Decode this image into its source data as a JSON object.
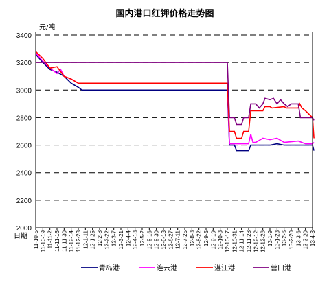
{
  "chart_data": {
    "type": "line",
    "title": "国内港口红钾价格走势图",
    "ylabel": "元/吨",
    "xlabel": "日期",
    "ylim": [
      2000,
      3400
    ],
    "yticks": [
      "3400",
      "3200",
      "3000",
      "2800",
      "2600",
      "2400",
      "2200",
      "2000"
    ],
    "grid": "horizontal-dashed",
    "legend_position": "bottom",
    "x_tick_labels": [
      "11-10-5",
      "11-10-19",
      "11-11-2",
      "11-11-16",
      "11-11-30",
      "11-12-14",
      "11-12-28",
      "12-1-11",
      "12-1-25",
      "12-2-8",
      "12-2-22",
      "12-3-7",
      "12-3-21",
      "12-4-4",
      "12-4-18",
      "12-5-2",
      "12-5-16",
      "12-5-30",
      "12-6-13",
      "12-6-27",
      "12-7-11",
      "12-7-25",
      "12-8-8",
      "12-8-22",
      "12-9-5",
      "12-9-19",
      "12-10-3",
      "12-10-17",
      "12-10-31",
      "12-11-14",
      "12-11-28",
      "12-12-12",
      "12-12-26",
      "13-1-9",
      "13-1-23",
      "13-2-6",
      "13-2-20",
      "13-3-6",
      "13-3-20",
      "13-4-3"
    ],
    "series": [
      {
        "name": "青岛港",
        "color": "#000080",
        "points": [
          [
            0,
            3260
          ],
          [
            1,
            3200
          ],
          [
            2,
            3150
          ],
          [
            3,
            3130
          ],
          [
            4,
            3100
          ],
          [
            5,
            3050
          ],
          [
            6,
            3020
          ],
          [
            6.5,
            3000
          ],
          [
            27,
            3000
          ],
          [
            27.3,
            2600
          ],
          [
            28,
            2600
          ],
          [
            28.3,
            2560
          ],
          [
            30,
            2560
          ],
          [
            30.3,
            2600
          ],
          [
            33,
            2600
          ],
          [
            34,
            2610
          ],
          [
            35,
            2600
          ],
          [
            37,
            2600
          ],
          [
            38,
            2600
          ],
          [
            39,
            2600
          ],
          [
            39.2,
            2560
          ]
        ]
      },
      {
        "name": "连云港",
        "color": "#FF00FF",
        "points": [
          [
            0,
            3270
          ],
          [
            1,
            3210
          ],
          [
            2,
            3160
          ],
          [
            3,
            3120
          ],
          [
            3.5,
            3150
          ],
          [
            4,
            3100
          ],
          [
            5,
            3080
          ],
          [
            6,
            3050
          ],
          [
            27,
            3050
          ],
          [
            27.3,
            2610
          ],
          [
            30,
            2610
          ],
          [
            30.3,
            2680
          ],
          [
            30.6,
            2620
          ],
          [
            31,
            2620
          ],
          [
            32,
            2650
          ],
          [
            33,
            2640
          ],
          [
            34,
            2650
          ],
          [
            35,
            2620
          ],
          [
            37,
            2630
          ],
          [
            38,
            2610
          ],
          [
            39,
            2610
          ],
          [
            39.2,
            2620
          ]
        ]
      },
      {
        "name": "湛江港",
        "color": "#FF0000",
        "points": [
          [
            0,
            3280
          ],
          [
            1,
            3230
          ],
          [
            2,
            3160
          ],
          [
            3,
            3170
          ],
          [
            4,
            3100
          ],
          [
            5,
            3080
          ],
          [
            6,
            3050
          ],
          [
            27,
            3050
          ],
          [
            27.3,
            2700
          ],
          [
            28,
            2700
          ],
          [
            28.3,
            2650
          ],
          [
            29,
            2650
          ],
          [
            29.3,
            2700
          ],
          [
            30,
            2700
          ],
          [
            30.3,
            2850
          ],
          [
            32,
            2850
          ],
          [
            32.3,
            2880
          ],
          [
            33,
            2880
          ],
          [
            33.3,
            2870
          ],
          [
            35,
            2880
          ],
          [
            35.3,
            2870
          ],
          [
            37,
            2870
          ],
          [
            37.2,
            2900
          ],
          [
            37.5,
            2870
          ],
          [
            38,
            2850
          ],
          [
            39,
            2800
          ],
          [
            39.2,
            2650
          ]
        ]
      },
      {
        "name": "营口港",
        "color": "#800080",
        "points": [
          [
            0,
            3200
          ],
          [
            27,
            3200
          ],
          [
            27.3,
            2800
          ],
          [
            28,
            2800
          ],
          [
            28.3,
            2750
          ],
          [
            29,
            2750
          ],
          [
            29.3,
            2800
          ],
          [
            30,
            2800
          ],
          [
            30.3,
            2900
          ],
          [
            31,
            2900
          ],
          [
            31.5,
            2870
          ],
          [
            32,
            2900
          ],
          [
            32.3,
            2940
          ],
          [
            33,
            2930
          ],
          [
            33.5,
            2940
          ],
          [
            34,
            2900
          ],
          [
            34.5,
            2930
          ],
          [
            35,
            2900
          ],
          [
            35.5,
            2880
          ],
          [
            36,
            2900
          ],
          [
            37,
            2900
          ],
          [
            37.3,
            2800
          ],
          [
            39,
            2800
          ],
          [
            39.2,
            2780
          ]
        ]
      }
    ]
  }
}
